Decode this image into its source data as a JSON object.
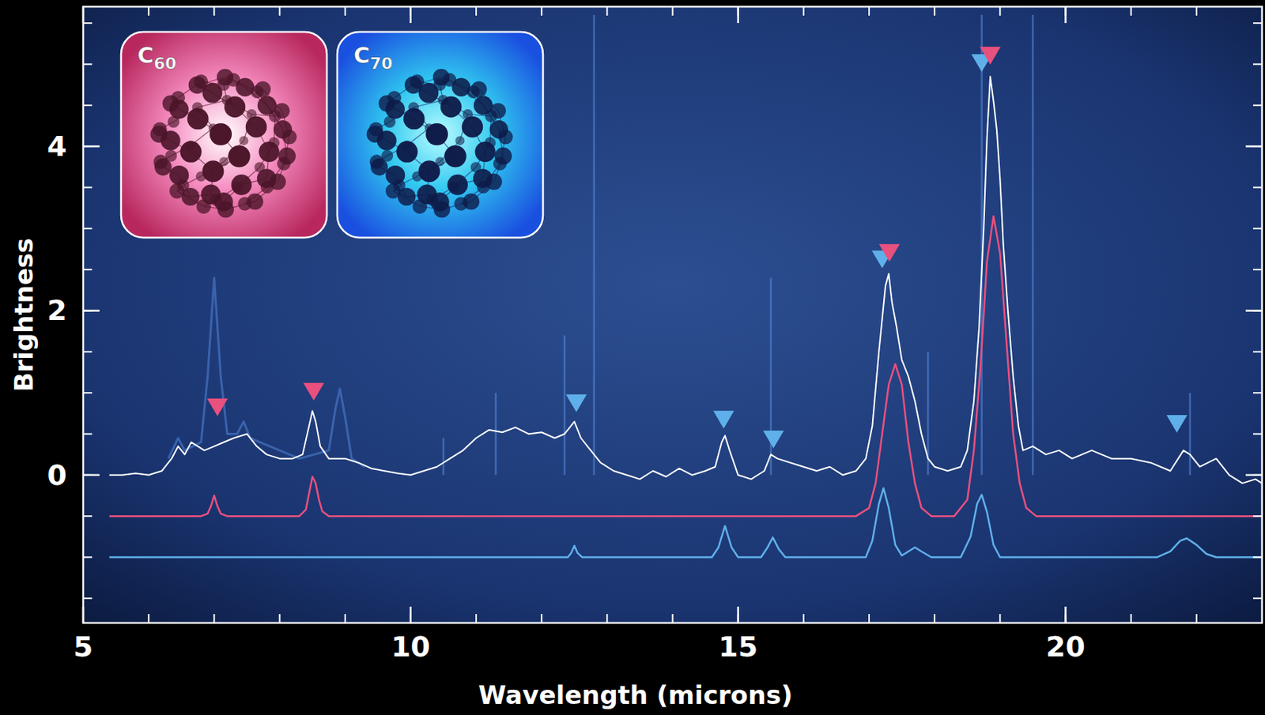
{
  "chart_data": {
    "type": "line",
    "x_label": "Wavelength (microns)",
    "y_label": "Brightness",
    "xlim": [
      5,
      23
    ],
    "ylim": [
      -1.8,
      5.7
    ],
    "xticks": [
      5,
      10,
      15,
      20
    ],
    "yticks": [
      0,
      2,
      4
    ],
    "grid": false,
    "legend": "upper left",
    "series": [
      {
        "color": "#ffffff",
        "x": [
          5.4,
          5.6,
          5.8,
          6.0,
          6.2,
          6.35,
          6.45,
          6.55,
          6.65,
          6.75,
          6.85,
          7.0,
          7.15,
          7.3,
          7.5,
          7.65,
          7.8,
          8.0,
          8.2,
          8.35,
          8.45,
          8.5,
          8.55,
          8.62,
          8.75,
          9.0,
          9.2,
          9.4,
          9.6,
          9.8,
          10.0,
          10.2,
          10.4,
          10.6,
          10.8,
          11.0,
          11.2,
          11.4,
          11.6,
          11.8,
          12.0,
          12.2,
          12.35,
          12.5,
          12.6,
          12.75,
          12.9,
          13.1,
          13.3,
          13.5,
          13.7,
          13.9,
          14.1,
          14.3,
          14.5,
          14.65,
          14.75,
          14.8,
          14.87,
          15.0,
          15.2,
          15.4,
          15.5,
          15.6,
          15.8,
          16.0,
          16.2,
          16.4,
          16.6,
          16.8,
          16.95,
          17.05,
          17.15,
          17.25,
          17.3,
          17.35,
          17.42,
          17.5,
          17.6,
          17.7,
          17.8,
          17.9,
          18.0,
          18.2,
          18.4,
          18.5,
          18.6,
          18.68,
          18.75,
          18.8,
          18.85,
          18.9,
          18.95,
          19.0,
          19.05,
          19.12,
          19.2,
          19.28,
          19.35,
          19.5,
          19.7,
          19.9,
          20.1,
          20.4,
          20.7,
          21.0,
          21.3,
          21.6,
          21.8,
          21.9,
          22.05,
          22.3,
          22.5,
          22.7,
          22.9,
          23.0
        ],
        "values": [
          0,
          0,
          0.02,
          0,
          0.05,
          0.2,
          0.35,
          0.25,
          0.4,
          0.35,
          0.3,
          0.35,
          0.4,
          0.45,
          0.5,
          0.35,
          0.25,
          0.2,
          0.2,
          0.25,
          0.6,
          0.78,
          0.65,
          0.35,
          0.2,
          0.2,
          0.15,
          0.08,
          0.05,
          0.02,
          0,
          0.05,
          0.1,
          0.2,
          0.3,
          0.45,
          0.55,
          0.52,
          0.58,
          0.5,
          0.52,
          0.45,
          0.5,
          0.65,
          0.45,
          0.3,
          0.15,
          0.05,
          0,
          -0.05,
          0.05,
          -0.02,
          0.08,
          0,
          0.05,
          0.1,
          0.4,
          0.48,
          0.3,
          0,
          -0.05,
          0.05,
          0.25,
          0.2,
          0.15,
          0.1,
          0.05,
          0.1,
          0,
          0.05,
          0.2,
          0.6,
          1.5,
          2.3,
          2.45,
          2.1,
          1.8,
          1.4,
          1.2,
          0.9,
          0.5,
          0.2,
          0.1,
          0.05,
          0.1,
          0.3,
          0.9,
          1.8,
          3.0,
          4.1,
          4.85,
          4.55,
          4.2,
          3.6,
          2.8,
          2.0,
          1.2,
          0.6,
          0.3,
          0.35,
          0.25,
          0.3,
          0.2,
          0.3,
          0.2,
          0.2,
          0.15,
          0.05,
          0.3,
          0.25,
          0.1,
          0.2,
          0,
          -0.1,
          -0.05,
          -0.1
        ]
      },
      {
        "name": "C60",
        "color": "#e8507e",
        "x": [
          5.4,
          6.8,
          6.9,
          6.95,
          7.0,
          7.05,
          7.1,
          7.2,
          8.3,
          8.4,
          8.45,
          8.5,
          8.55,
          8.6,
          8.65,
          8.75,
          16.8,
          17.0,
          17.1,
          17.2,
          17.3,
          17.4,
          17.5,
          17.6,
          17.7,
          17.8,
          17.95,
          18.3,
          18.5,
          18.6,
          18.7,
          18.8,
          18.9,
          19.0,
          19.1,
          19.2,
          19.3,
          19.4,
          19.55,
          23.0
        ],
        "values": [
          -0.5,
          -0.5,
          -0.47,
          -0.38,
          -0.25,
          -0.38,
          -0.47,
          -0.5,
          -0.5,
          -0.42,
          -0.22,
          -0.02,
          -0.1,
          -0.3,
          -0.44,
          -0.5,
          -0.5,
          -0.4,
          -0.1,
          0.5,
          1.1,
          1.35,
          1.1,
          0.4,
          -0.1,
          -0.4,
          -0.5,
          -0.5,
          -0.3,
          0.3,
          1.3,
          2.6,
          3.15,
          2.7,
          1.6,
          0.5,
          -0.1,
          -0.4,
          -0.5,
          -0.5
        ]
      },
      {
        "name": "C70",
        "color": "#5fb0ea",
        "x": [
          5.4,
          12.4,
          12.45,
          12.5,
          12.55,
          12.62,
          14.6,
          14.7,
          14.8,
          14.9,
          15.0,
          15.35,
          15.45,
          15.53,
          15.62,
          15.72,
          16.95,
          17.05,
          17.15,
          17.22,
          17.3,
          17.4,
          17.5,
          17.6,
          17.7,
          17.8,
          17.95,
          18.4,
          18.55,
          18.65,
          18.72,
          18.8,
          18.9,
          19.0,
          21.4,
          21.6,
          21.75,
          21.85,
          22.0,
          22.15,
          22.3,
          23.0
        ],
        "values": [
          -1,
          -1,
          -0.95,
          -0.86,
          -0.95,
          -1,
          -1,
          -0.88,
          -0.62,
          -0.88,
          -1,
          -1,
          -0.88,
          -0.76,
          -0.9,
          -1,
          -1,
          -0.8,
          -0.35,
          -0.16,
          -0.4,
          -0.85,
          -0.98,
          -0.93,
          -0.88,
          -0.93,
          -1,
          -1,
          -0.75,
          -0.35,
          -0.24,
          -0.45,
          -0.85,
          -1,
          -1,
          -0.93,
          -0.8,
          -0.77,
          -0.85,
          -0.96,
          -1,
          -1
        ]
      },
      {
        "color": "#4d7fd0",
        "x": [
          6.3,
          6.45,
          6.55,
          6.8,
          6.9,
          7.0,
          7.1,
          7.2,
          7.35,
          7.45,
          7.55,
          7.7,
          8.0,
          8.3,
          8.75,
          8.85,
          8.92,
          9.0,
          9.1,
          9.3
        ],
        "values": [
          0.2,
          0.45,
          0.3,
          0.4,
          1.2,
          2.4,
          1.2,
          0.5,
          0.5,
          0.65,
          0.45,
          0.4,
          0.3,
          0.2,
          0.3,
          0.8,
          1.05,
          0.7,
          0.2,
          0.1
        ]
      }
    ],
    "emission_lines": {
      "x": [
        10.5,
        11.3,
        12.35,
        12.8,
        15.5,
        17.9,
        18.72,
        19.5,
        21.9
      ],
      "values": [
        0.45,
        1.0,
        1.7,
        5.6,
        2.4,
        1.5,
        5.6,
        5.6,
        1.0
      ]
    },
    "peak_markers": [
      {
        "x": 7.05,
        "y": 0.83,
        "series": 1
      },
      {
        "x": 8.52,
        "y": 1.02,
        "series": 1
      },
      {
        "x": 12.53,
        "y": 0.88,
        "series": 2
      },
      {
        "x": 14.78,
        "y": 0.68,
        "series": 2
      },
      {
        "x": 15.54,
        "y": 0.44,
        "series": 2
      },
      {
        "x": 17.2,
        "y": 2.63,
        "series": 2
      },
      {
        "x": 17.31,
        "y": 2.71,
        "series": 1
      },
      {
        "x": 18.72,
        "y": 5.02,
        "series": 2
      },
      {
        "x": 18.85,
        "y": 5.11,
        "series": 1
      },
      {
        "x": 21.7,
        "y": 0.63,
        "series": 2
      }
    ]
  }
}
